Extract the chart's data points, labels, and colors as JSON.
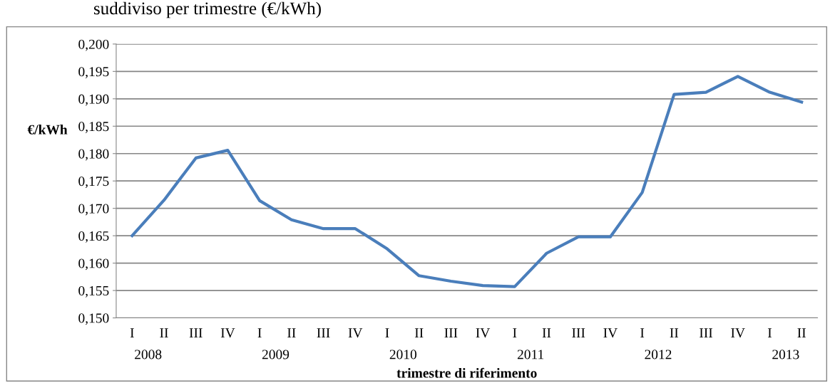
{
  "chart_data": {
    "type": "line",
    "title": "suddiviso per trimestre (€/kWh)",
    "xlabel": "trimestre di riferimento",
    "ylabel": "€/kWh",
    "categories": [
      "I",
      "II",
      "III",
      "IV",
      "I",
      "II",
      "III",
      "IV",
      "I",
      "II",
      "III",
      "IV",
      "I",
      "II",
      "III",
      "IV",
      "I",
      "II",
      "III",
      "IV",
      "I",
      "II"
    ],
    "series": [
      {
        "color": "#4a7ebb",
        "values": [
          0.165,
          0.1715,
          0.1792,
          0.1806,
          0.1714,
          0.1679,
          0.1663,
          0.1663,
          0.1626,
          0.1577,
          0.1567,
          0.1559,
          0.1557,
          0.1618,
          0.1648,
          0.1648,
          0.1729,
          0.1908,
          0.1912,
          0.1941,
          0.1912,
          0.1894
        ]
      }
    ],
    "annotations": [
      "2008",
      "2009",
      "2010",
      "2011",
      "2012",
      "2013"
    ],
    "ylim": [
      0.15,
      0.2
    ],
    "yticks": [
      {
        "value": 0.15,
        "label": "0,150"
      },
      {
        "value": 0.155,
        "label": "0,155"
      },
      {
        "value": 0.16,
        "label": "0,160"
      },
      {
        "value": 0.165,
        "label": "0,165"
      },
      {
        "value": 0.17,
        "label": "0,170"
      },
      {
        "value": 0.175,
        "label": "0,175"
      },
      {
        "value": 0.18,
        "label": "0,180"
      },
      {
        "value": 0.185,
        "label": "0,185"
      },
      {
        "value": 0.19,
        "label": "0,190"
      },
      {
        "value": 0.195,
        "label": "0,195"
      },
      {
        "value": 0.2,
        "label": "0,200"
      }
    ],
    "grid": "y",
    "legend": false,
    "marker": "none",
    "line_style": "solid"
  }
}
